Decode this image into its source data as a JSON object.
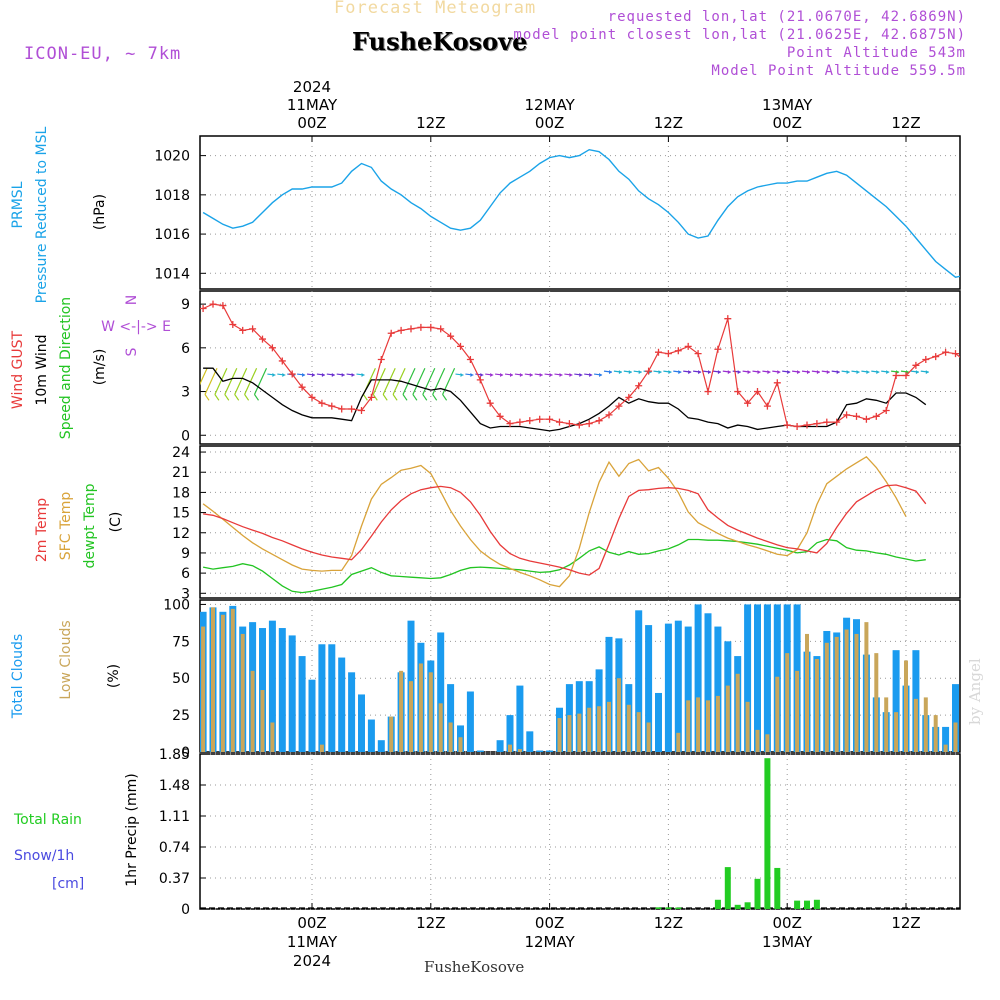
{
  "header": {
    "subtitle": "Forecast Meteogram",
    "title": "FusheKosove",
    "model": "ICON-EU, ~ 7km",
    "requested": "requested lon,lat (21.0670E, 42.6869N)",
    "model_point": "model point closest lon,lat (21.0625E, 42.6875N)",
    "altitude": "Point Altitude 543m",
    "model_altitude": "Model Point Altitude 559.5m",
    "bottom_name": "FusheKosove",
    "watermark": "by Angel"
  },
  "colors": {
    "pressure": "#1aa3e8",
    "gust": "#e83a3a",
    "wind": "#000000",
    "temp": "#e83a3a",
    "sfc": "#d9a33a",
    "dewpt": "#22c422",
    "total_cloud": "#1a9bef",
    "low_cloud": "#c9a65a",
    "rain": "#22cc22",
    "snow": "#4a4ae0",
    "purple": "#b04fd6"
  },
  "time_axis": {
    "top_labels": [
      {
        "h": 0,
        "lines": [
          "2024",
          "11MAY",
          "00Z"
        ]
      },
      {
        "h": 12,
        "lines": [
          "12Z"
        ]
      },
      {
        "h": 24,
        "lines": [
          "12MAY",
          "00Z"
        ]
      },
      {
        "h": 36,
        "lines": [
          "12Z"
        ]
      },
      {
        "h": 48,
        "lines": [
          "13MAY",
          "00Z"
        ]
      },
      {
        "h": 60,
        "lines": [
          "12Z"
        ]
      }
    ],
    "bottom_labels": [
      {
        "h": 0,
        "lines": [
          "00Z",
          "11MAY",
          "2024"
        ]
      },
      {
        "h": 12,
        "lines": [
          "12Z"
        ]
      },
      {
        "h": 24,
        "lines": [
          "00Z",
          "12MAY"
        ]
      },
      {
        "h": 36,
        "lines": [
          "12Z"
        ]
      },
      {
        "h": 48,
        "lines": [
          "00Z",
          "13MAY"
        ]
      },
      {
        "h": 60,
        "lines": [
          "12Z"
        ]
      }
    ]
  },
  "panels": {
    "pressure": {
      "labels": [
        "PRMSL",
        "Pressure Reduced to MSL"
      ],
      "unit": "(hPa)",
      "ticks": [
        "1014",
        "1016",
        "1018",
        "1020"
      ]
    },
    "wind": {
      "labels": [
        "Wind GUST",
        "10m Wind",
        "Speed and Direction"
      ],
      "unit": "(m/s)",
      "ticks": [
        "0",
        "3",
        "6",
        "9"
      ],
      "compass": [
        "N",
        "W <-|-> E",
        "S"
      ]
    },
    "temp": {
      "labels": [
        "2m Temp",
        "SFC Temp",
        "dewpt Temp"
      ],
      "unit": "(C)",
      "ticks": [
        "3",
        "6",
        "9",
        "12",
        "15",
        "18",
        "21",
        "24"
      ]
    },
    "cloud": {
      "labels": [
        "Total Clouds",
        "Low Clouds"
      ],
      "unit": "(%)",
      "ticks": [
        "0",
        "25",
        "50",
        "75",
        "100"
      ]
    },
    "precip": {
      "labels": [
        "Total  Rain",
        "Snow/1h",
        "[cm]"
      ],
      "unit": "1hr Precip (mm)",
      "ticks": [
        "0",
        "0.37",
        "0.74",
        "1.11",
        "1.48",
        "1.85"
      ]
    }
  },
  "chart_data": [
    {
      "type": "line",
      "title": "PRMSL Pressure Reduced to MSL",
      "ylabel": "hPa",
      "ylim": [
        1013.2,
        1021
      ],
      "x_start_hour": -11,
      "x_step_hours": 1,
      "x_range": [
        -11,
        66
      ],
      "series": [
        {
          "name": "PRMSL",
          "values": [
            1017.1,
            1016.8,
            1016.5,
            1016.3,
            1016.4,
            1016.6,
            1017.1,
            1017.6,
            1018.0,
            1018.3,
            1018.3,
            1018.4,
            1018.4,
            1018.4,
            1018.6,
            1019.2,
            1019.6,
            1019.4,
            1018.7,
            1018.3,
            1018.0,
            1017.6,
            1017.3,
            1016.9,
            1016.6,
            1016.3,
            1016.2,
            1016.3,
            1016.7,
            1017.4,
            1018.1,
            1018.6,
            1018.9,
            1019.2,
            1019.6,
            1019.9,
            1020.0,
            1019.9,
            1020.0,
            1020.3,
            1020.2,
            1019.8,
            1019.2,
            1018.8,
            1018.2,
            1017.8,
            1017.5,
            1017.1,
            1016.6,
            1016.0,
            1015.8,
            1015.9,
            1016.7,
            1017.4,
            1017.9,
            1018.2,
            1018.4,
            1018.5,
            1018.6,
            1018.6,
            1018.7,
            1018.7,
            1018.9,
            1019.1,
            1019.2,
            1019.0,
            1018.6,
            1018.2,
            1017.8,
            1017.4,
            1016.9,
            1016.4,
            1015.8,
            1015.2,
            1014.6,
            1014.2,
            1013.8,
            1013.9
          ]
        }
      ]
    },
    {
      "type": "line",
      "title": "Wind GUST and 10m Wind Speed and Direction",
      "ylabel": "m/s",
      "ylim": [
        -0.6,
        9.9
      ],
      "x_start_hour": -11,
      "x_step_hours": 1,
      "x_range": [
        -11,
        66
      ],
      "series": [
        {
          "name": "Wind GUST",
          "values": [
            8.7,
            9.0,
            8.9,
            7.6,
            7.2,
            7.3,
            6.6,
            6.0,
            5.1,
            4.2,
            3.3,
            2.6,
            2.2,
            2.0,
            1.8,
            1.8,
            1.7,
            2.6,
            5.2,
            7.0,
            7.2,
            7.3,
            7.4,
            7.4,
            7.3,
            6.8,
            6.1,
            5.2,
            3.8,
            2.2,
            1.3,
            0.8,
            0.9,
            1.0,
            1.1,
            1.1,
            0.9,
            0.8,
            0.7,
            0.8,
            1.0,
            1.4,
            2.0,
            2.6,
            3.4,
            4.4,
            5.7,
            5.6,
            5.8,
            6.1,
            5.6,
            3.0,
            5.9,
            8.0,
            3.0,
            2.2,
            3.0,
            2.0,
            3.6,
            0.7,
            0.6,
            0.7,
            0.8,
            0.9,
            0.9,
            1.4,
            1.3,
            1.1,
            1.3,
            1.7,
            4.1,
            4.1,
            4.8,
            5.2,
            5.4,
            5.7,
            5.6,
            5.1
          ]
        },
        {
          "name": "10m Wind",
          "values": [
            4.6,
            4.6,
            3.7,
            3.9,
            3.9,
            3.6,
            3.1,
            2.6,
            2.1,
            1.7,
            1.4,
            1.2,
            1.2,
            1.2,
            1.1,
            1.0,
            2.6,
            3.8,
            3.8,
            3.8,
            3.7,
            3.5,
            3.3,
            3.1,
            3.2,
            3.0,
            2.4,
            1.6,
            0.8,
            0.5,
            0.6,
            0.6,
            0.6,
            0.5,
            0.4,
            0.3,
            0.4,
            0.6,
            0.8,
            1.1,
            1.5,
            2.0,
            2.6,
            2.2,
            2.5,
            2.3,
            2.2,
            2.2,
            1.8,
            1.2,
            1.1,
            0.9,
            0.8,
            0.5,
            0.7,
            0.6,
            0.4,
            0.5,
            0.6,
            0.7,
            0.6,
            0.6,
            0.6,
            0.6,
            0.9,
            2.1,
            2.2,
            2.5,
            2.4,
            2.2,
            2.9,
            2.9,
            2.6,
            2.1
          ]
        }
      ]
    },
    {
      "type": "line",
      "title": "2m Temp, SFC Temp, dewpt Temp",
      "ylabel": "C",
      "ylim": [
        2.3,
        24.9
      ],
      "x_start_hour": -11,
      "x_step_hours": 1,
      "x_range": [
        -11,
        66
      ],
      "series": [
        {
          "name": "2m Temp",
          "values": [
            14.8,
            14.6,
            14.1,
            13.5,
            12.9,
            12.4,
            11.9,
            11.3,
            10.8,
            10.2,
            9.6,
            9.1,
            8.7,
            8.4,
            8.2,
            8.0,
            9.5,
            11.5,
            13.6,
            15.4,
            16.8,
            17.8,
            18.4,
            18.7,
            18.9,
            18.7,
            18.0,
            16.6,
            14.6,
            12.2,
            10.2,
            8.9,
            8.2,
            7.8,
            7.5,
            7.2,
            6.9,
            6.5,
            6.0,
            5.7,
            6.7,
            10.3,
            14.1,
            17.4,
            18.3,
            18.4,
            18.6,
            18.7,
            18.6,
            18.3,
            17.8,
            15.4,
            14.2,
            13.1,
            12.4,
            11.8,
            11.2,
            10.7,
            10.2,
            9.8,
            9.6,
            9.3,
            9.0,
            10.4,
            12.8,
            14.9,
            16.6,
            17.5,
            18.4,
            19.0,
            19.1,
            18.7,
            18.2,
            16.3
          ]
        },
        {
          "name": "SFC Temp",
          "values": [
            16.3,
            15.2,
            14.0,
            12.8,
            11.6,
            10.5,
            9.6,
            8.8,
            8.0,
            7.2,
            6.6,
            6.4,
            6.3,
            6.4,
            6.4,
            8.6,
            13.0,
            17.0,
            19.2,
            20.2,
            21.3,
            21.6,
            22.0,
            20.8,
            18.1,
            15.3,
            13.0,
            11.0,
            9.3,
            8.2,
            7.3,
            6.7,
            6.1,
            5.6,
            5.0,
            4.3,
            4.0,
            5.6,
            9.7,
            15.0,
            19.5,
            22.5,
            20.4,
            22.3,
            22.9,
            21.2,
            21.7,
            20.1,
            18.0,
            15.1,
            13.5,
            12.7,
            11.9,
            11.2,
            10.7,
            10.2,
            9.8,
            9.3,
            8.8,
            8.6,
            9.5,
            12.0,
            16.2,
            19.3,
            20.4,
            21.5,
            22.4,
            23.3,
            21.7,
            19.6,
            17.2,
            14.4
          ]
        },
        {
          "name": "dewpt Temp",
          "values": [
            6.9,
            6.6,
            6.8,
            7.0,
            7.4,
            7.1,
            6.3,
            5.2,
            4.1,
            3.3,
            3.1,
            3.3,
            3.6,
            3.9,
            4.3,
            5.8,
            6.3,
            6.8,
            6.1,
            5.6,
            5.5,
            5.4,
            5.3,
            5.2,
            5.3,
            5.8,
            6.4,
            6.8,
            6.9,
            6.8,
            6.7,
            6.6,
            6.5,
            6.3,
            6.1,
            6.2,
            6.5,
            7.2,
            8.2,
            9.3,
            9.9,
            9.1,
            8.7,
            9.2,
            8.8,
            8.9,
            9.3,
            9.6,
            10.2,
            11.0,
            11.0,
            10.9,
            10.9,
            10.8,
            10.7,
            10.5,
            10.3,
            10.0,
            9.7,
            9.4,
            9.0,
            9.2,
            10.5,
            11.0,
            10.8,
            9.8,
            9.4,
            9.3,
            9.0,
            8.8,
            8.4,
            8.1,
            7.8,
            8.0
          ]
        }
      ]
    },
    {
      "type": "bar",
      "title": "Total Clouds and Low Clouds",
      "ylabel": "%",
      "ylim": [
        0,
        103
      ],
      "x_start_hour": -11,
      "x_step_hours": 1,
      "x_range": [
        -11,
        66
      ],
      "series": [
        {
          "name": "Total Clouds",
          "values": [
            95,
            98,
            95,
            99,
            85,
            88,
            84,
            89,
            84,
            79,
            65,
            49,
            73,
            73,
            64,
            54,
            39,
            22,
            8,
            24,
            54,
            89,
            74,
            62,
            81,
            46,
            18,
            41,
            1,
            0,
            8,
            25,
            45,
            14,
            1,
            1,
            30,
            46,
            48,
            48,
            56,
            78,
            77,
            46,
            96,
            86,
            40,
            87,
            89,
            85,
            100,
            94,
            85,
            75,
            65,
            100,
            100,
            100,
            100,
            100,
            100,
            68,
            65,
            82,
            81,
            91,
            90,
            66,
            37,
            27,
            69,
            45,
            69,
            25,
            17,
            17,
            46,
            26,
            15,
            48
          ]
        },
        {
          "name": "Low Clouds",
          "values": [
            85,
            98,
            93,
            97,
            80,
            55,
            42,
            20,
            0,
            0,
            0,
            0,
            5,
            0,
            0,
            0,
            0,
            0,
            0,
            24,
            55,
            48,
            60,
            54,
            33,
            20,
            10,
            0,
            0,
            0,
            0,
            5,
            2,
            0,
            0,
            0,
            23,
            25,
            26,
            30,
            31,
            34,
            50,
            32,
            27,
            20,
            0,
            0,
            13,
            35,
            37,
            35,
            38,
            45,
            53,
            34,
            15,
            12,
            51,
            67,
            55,
            80,
            63,
            74,
            78,
            83,
            80,
            88,
            67,
            37,
            27,
            62,
            36,
            37,
            25,
            5,
            20,
            39,
            5,
            15
          ]
        }
      ]
    },
    {
      "type": "bar",
      "title": "1hr Precip Total Rain",
      "ylabel": "1hr Precip (mm)",
      "ylim": [
        0,
        1.85
      ],
      "x_start_hour": -11,
      "x_step_hours": 1,
      "x_range": [
        -11,
        66
      ],
      "series": [
        {
          "name": "Total Rain",
          "values": [
            0,
            0,
            0,
            0,
            0,
            0,
            0,
            0,
            0,
            0,
            0,
            0,
            0,
            0,
            0,
            0,
            0,
            0,
            0,
            0,
            0,
            0,
            0,
            0,
            0,
            0,
            0,
            0,
            0,
            0,
            0,
            0,
            0,
            0,
            0,
            0,
            0,
            0,
            0,
            0,
            0,
            0,
            0,
            0,
            0,
            0,
            0.02,
            0.02,
            0.01,
            0,
            0,
            0,
            0.11,
            0.5,
            0.05,
            0.08,
            0.36,
            1.8,
            0.49,
            0,
            0.1,
            0.1,
            0.11,
            0,
            0,
            0,
            0,
            0,
            0,
            0,
            0,
            0,
            0,
            0,
            0,
            0,
            0,
            0
          ]
        }
      ]
    }
  ]
}
